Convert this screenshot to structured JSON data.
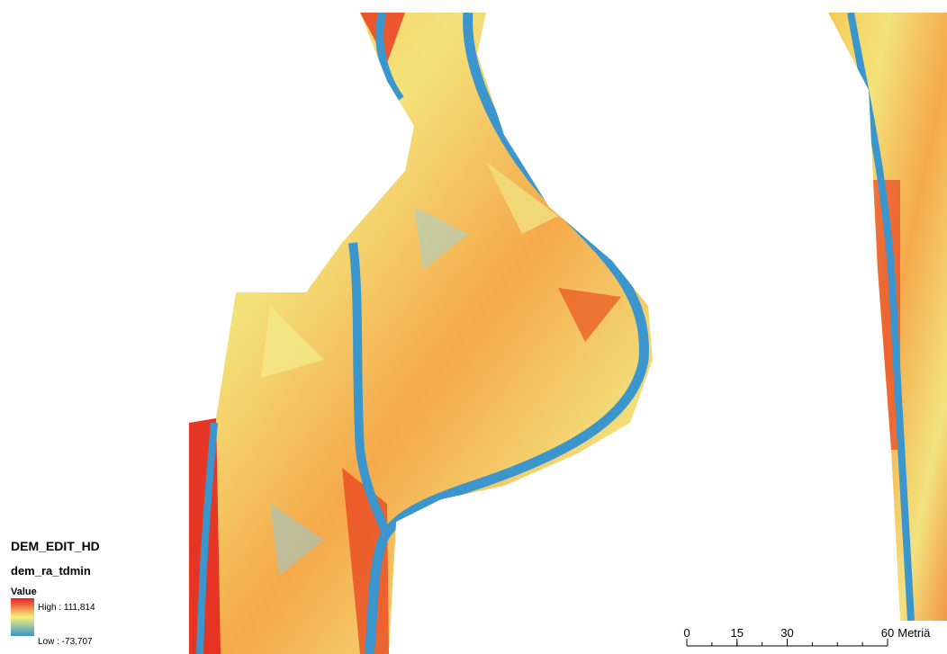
{
  "legend": {
    "layer": "DEM_EDIT_HD",
    "raster": "dem_ra_tdmin",
    "field": "Value",
    "high": "High : 111,814",
    "low": "Low : -73,707"
  },
  "scale_bar": {
    "ticks": [
      0,
      15,
      30,
      60
    ],
    "unit": "Metriä"
  }
}
